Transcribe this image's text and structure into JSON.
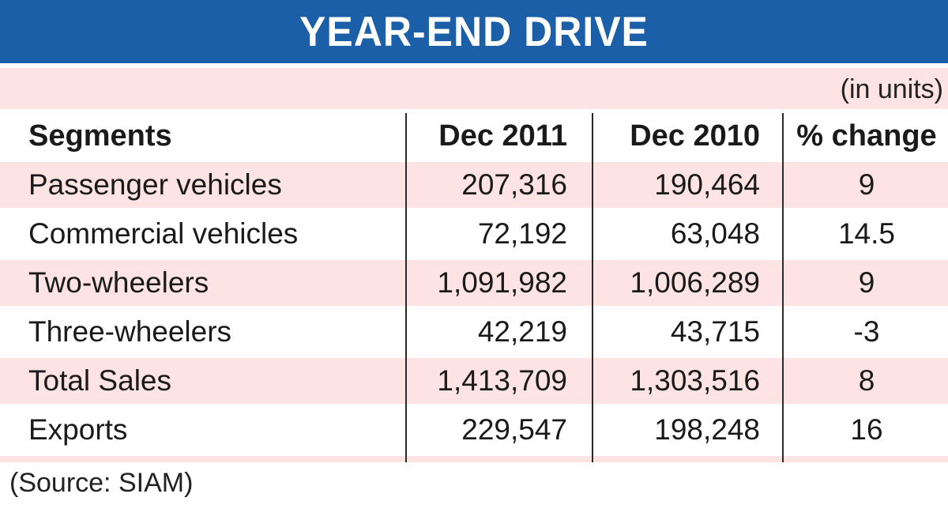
{
  "title": "YEAR-END DRIVE",
  "units_note": "(in units)",
  "source": "(Source: SIAM)",
  "chart_data": {
    "type": "table",
    "title": "YEAR-END DRIVE",
    "columns": [
      "Segments",
      "Dec 2011",
      "Dec 2010",
      "% change"
    ],
    "rows": [
      [
        "Passenger vehicles",
        "207,316",
        "190,464",
        "9"
      ],
      [
        "Commercial vehicles",
        "72,192",
        "63,048",
        "14.5"
      ],
      [
        "Two-wheelers",
        "1,091,982",
        "1,006,289",
        "9"
      ],
      [
        "Three-wheelers",
        "42,219",
        "43,715",
        "-3"
      ],
      [
        "Total Sales",
        "1,413,709",
        "1,303,516",
        "8"
      ],
      [
        "Exports",
        "229,547",
        "198,248",
        "16"
      ]
    ]
  },
  "colors": {
    "title_bg": "#1b5fa8",
    "row_shade": "#fde3e3"
  }
}
